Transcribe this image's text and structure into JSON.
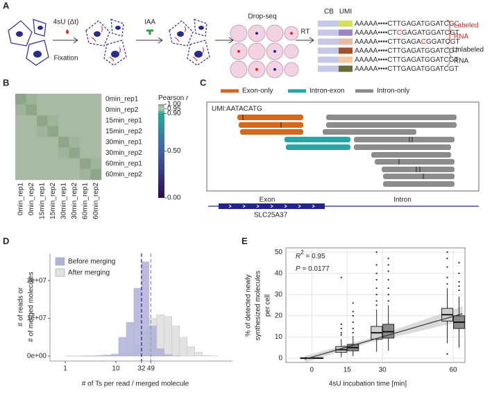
{
  "panel_labels": [
    "A",
    "B",
    "C",
    "D",
    "E"
  ],
  "panel_a": {
    "step1": "4sU (Δt)",
    "step1_sub": "Fixation",
    "step2": "IAA",
    "step3": "Drop-seq",
    "step4": "RT",
    "cb": "CB",
    "umi": "UMI",
    "barcode_colors": [
      [
        "#c5c8e6",
        "#d6e05a"
      ],
      [
        "#c5c8e6",
        "#9b86c2"
      ],
      [
        "#c5c8e6",
        "#e7b9a6"
      ],
      [
        "#c5c8e6",
        "#a0522d"
      ],
      [
        "#c5c8e6",
        "#f5c8a0"
      ],
      [
        "#c5c8e6",
        "#6b6b3a"
      ]
    ],
    "sequences": [
      [
        "AAAAA••••CTTGAGATGGATCG",
        "C"
      ],
      [
        "AAAAA••••CT",
        "C",
        "GAGATGGATCGT"
      ],
      [
        "AAAAA••••CTTGAGA",
        "C",
        "GGATCGT"
      ],
      [
        "AAAAA••••CTTGAGATGGATCGT"
      ],
      [
        "AAAAA••••CTTGAGATGGATCGT"
      ],
      [
        "AAAAA••••CTTGAGATGGATCGT"
      ]
    ],
    "label_color": "#e8231f",
    "labeled": [
      "Labeled",
      "RNA"
    ],
    "unlabeled": [
      "Unlabeled",
      "RNA"
    ]
  },
  "panel_c": {
    "legend": [
      {
        "name": "Exon-only",
        "color": "#d2691e"
      },
      {
        "name": "Intron-exon",
        "color": "#2aa5a5"
      },
      {
        "name": "Intron-only",
        "color": "#8c8c8c"
      }
    ],
    "umi": "UMI:AATACATG",
    "exon": "Exon",
    "intron": "Intron",
    "gene": "SLC25A37",
    "gene_color": "#23238e"
  },
  "chart_data": [
    {
      "type": "heatmap",
      "rows": [
        "0min_rep1",
        "0min_rep2",
        "15min_rep1",
        "15min_rep2",
        "30min_rep1",
        "30min_rep2",
        "60min_rep1",
        "60min_rep2"
      ],
      "columns": [
        "0min_rep1",
        "0min_rep2",
        "15min_rep1",
        "15min_rep2",
        "30min_rep1",
        "30min_rep2",
        "60min_rep1",
        "60min_rep2"
      ],
      "values": [
        [
          1,
          0.98,
          0.97,
          0.97,
          0.97,
          0.97,
          0.97,
          0.97
        ],
        [
          0.98,
          1,
          0.97,
          0.97,
          0.97,
          0.97,
          0.97,
          0.97
        ],
        [
          0.97,
          0.97,
          1,
          0.98,
          0.97,
          0.97,
          0.97,
          0.97
        ],
        [
          0.97,
          0.97,
          0.98,
          1,
          0.97,
          0.97,
          0.97,
          0.97
        ],
        [
          0.97,
          0.97,
          0.97,
          0.97,
          1,
          0.98,
          0.97,
          0.97
        ],
        [
          0.97,
          0.97,
          0.97,
          0.97,
          0.98,
          1,
          0.97,
          0.97
        ],
        [
          0.97,
          0.97,
          0.97,
          0.97,
          0.97,
          0.97,
          1,
          0.98
        ],
        [
          0.97,
          0.97,
          0.97,
          0.97,
          0.97,
          0.97,
          0.98,
          1
        ]
      ],
      "colorbar_title": "Pearson ",
      "colorbar_title_italic": "r",
      "colorscale": {
        "stops": [
          0,
          0.5,
          0.9,
          0.95,
          1
        ],
        "colors": [
          "#2d0a4e",
          "#3f63a8",
          "#2aa89a",
          "#b9c8b4",
          "#8fa58c"
        ]
      },
      "clim": [
        0,
        1
      ],
      "cticks": [
        {
          "value": 1,
          "label": "1.00"
        },
        {
          "value": 0.95,
          "label": "0.95"
        },
        {
          "value": 0.9,
          "label": "0.90"
        },
        {
          "value": 0.5,
          "label": "0.50"
        },
        {
          "value": 0,
          "label": "0.00"
        }
      ]
    },
    {
      "type": "histogram",
      "bins": [
        1,
        1.41,
        2,
        2.83,
        4,
        5.66,
        8,
        11.3,
        16,
        22.6,
        32,
        45.3,
        64,
        90.5,
        128,
        181,
        256,
        362,
        512,
        724,
        1024
      ],
      "series": [
        {
          "name": "Before merging",
          "color": "#b0b0d8",
          "values": [
            50000,
            50000,
            100000,
            100000,
            200000,
            300000,
            600000,
            5000000,
            9000000,
            18000000,
            25000000,
            8000000,
            2000000,
            500000,
            100000,
            0,
            0,
            0,
            0,
            0
          ]
        },
        {
          "name": "After merging",
          "color": "#e2e2e2",
          "values": [
            20000,
            20000,
            50000,
            50000,
            100000,
            200000,
            300000,
            500000,
            1000000,
            3000000,
            7000000,
            10000000,
            11000000,
            10500000,
            8000000,
            5000000,
            2500000,
            1000000,
            200000,
            50000
          ]
        }
      ],
      "xscale": "log",
      "xlim": [
        0.5,
        2000
      ],
      "ylim": [
        -1300000,
        27200000
      ],
      "xticks": [
        1,
        10,
        32,
        49
      ],
      "yticks": [
        {
          "value": 0,
          "label": "0e+00"
        },
        {
          "value": 10000000,
          "label": "1e+07"
        },
        {
          "value": 20000000,
          "label": "2e+07"
        }
      ],
      "vlines": [
        {
          "x": 32,
          "color": "#2d2d8f"
        },
        {
          "x": 49,
          "color": "#9a9a9a"
        }
      ],
      "ylabel": [
        "# of reads or",
        "# of merged molecules"
      ],
      "xlabel": "# of Ts per read / merged molecule",
      "legend": "top-left"
    },
    {
      "type": "box",
      "xlim": [
        -11,
        65
      ],
      "ylim": [
        -2,
        52
      ],
      "xticks": [
        0,
        15,
        30,
        60
      ],
      "yticks": [
        0,
        10,
        20,
        30,
        40,
        50
      ],
      "grid": true,
      "boxes": [
        {
          "x": -2.5,
          "color": "#d0d0d0",
          "low": 0,
          "q1": 0,
          "median": 0,
          "q3": 0.2,
          "high": 0.5,
          "outliers": []
        },
        {
          "x": 2.5,
          "color": "#8a8a8a",
          "low": 0,
          "q1": 0,
          "median": 0,
          "q3": 0.2,
          "high": 0.5,
          "outliers": []
        },
        {
          "x": 12.5,
          "color": "#d0d0d0",
          "low": 0.5,
          "q1": 2.8,
          "median": 4,
          "q3": 5.5,
          "high": 9,
          "outliers": [
            11,
            12,
            14,
            16,
            38
          ]
        },
        {
          "x": 17.5,
          "color": "#8a8a8a",
          "low": 1,
          "q1": 3.5,
          "median": 5,
          "q3": 6.5,
          "high": 10.5,
          "outliers": [
            12,
            14,
            17,
            20,
            22,
            26
          ]
        },
        {
          "x": 27.5,
          "color": "#d0d0d0",
          "low": 3,
          "q1": 9,
          "median": 12,
          "q3": 15,
          "high": 23,
          "outliers": [
            25,
            27,
            30,
            33,
            37,
            40,
            44,
            50
          ]
        },
        {
          "x": 32.5,
          "color": "#8a8a8a",
          "low": 3.5,
          "q1": 9.5,
          "median": 12.5,
          "q3": 16,
          "high": 25,
          "outliers": [
            27,
            30,
            33,
            37,
            41,
            44,
            47
          ]
        },
        {
          "x": 57.5,
          "color": "#d0d0d0",
          "low": 7,
          "q1": 17.5,
          "median": 20.5,
          "q3": 23.5,
          "high": 33,
          "outliers": [
            2,
            35,
            38,
            43,
            47,
            50
          ]
        },
        {
          "x": 62.5,
          "color": "#8a8a8a",
          "low": 5,
          "q1": 14,
          "median": 17,
          "q3": 20,
          "high": 29,
          "outliers": [
            32,
            34,
            36,
            40,
            45
          ]
        }
      ],
      "fit": {
        "x": [
          -3,
          25,
          64
        ],
        "y": [
          -0.46,
          8.5,
          21
        ],
        "ci_low": [
          -2,
          7.5,
          17.5
        ],
        "ci_high": [
          1.1,
          9.5,
          24.5
        ],
        "color": "#333333",
        "band_color": "#cccccc"
      },
      "r2": [
        "R",
        "2",
        " = 0.95"
      ],
      "p": [
        "P",
        " = 0.0177"
      ],
      "ylabel": [
        "% of detected newly",
        "synthesized molecules",
        "per cell"
      ],
      "xlabel": "4sU incubation time [min]"
    }
  ]
}
